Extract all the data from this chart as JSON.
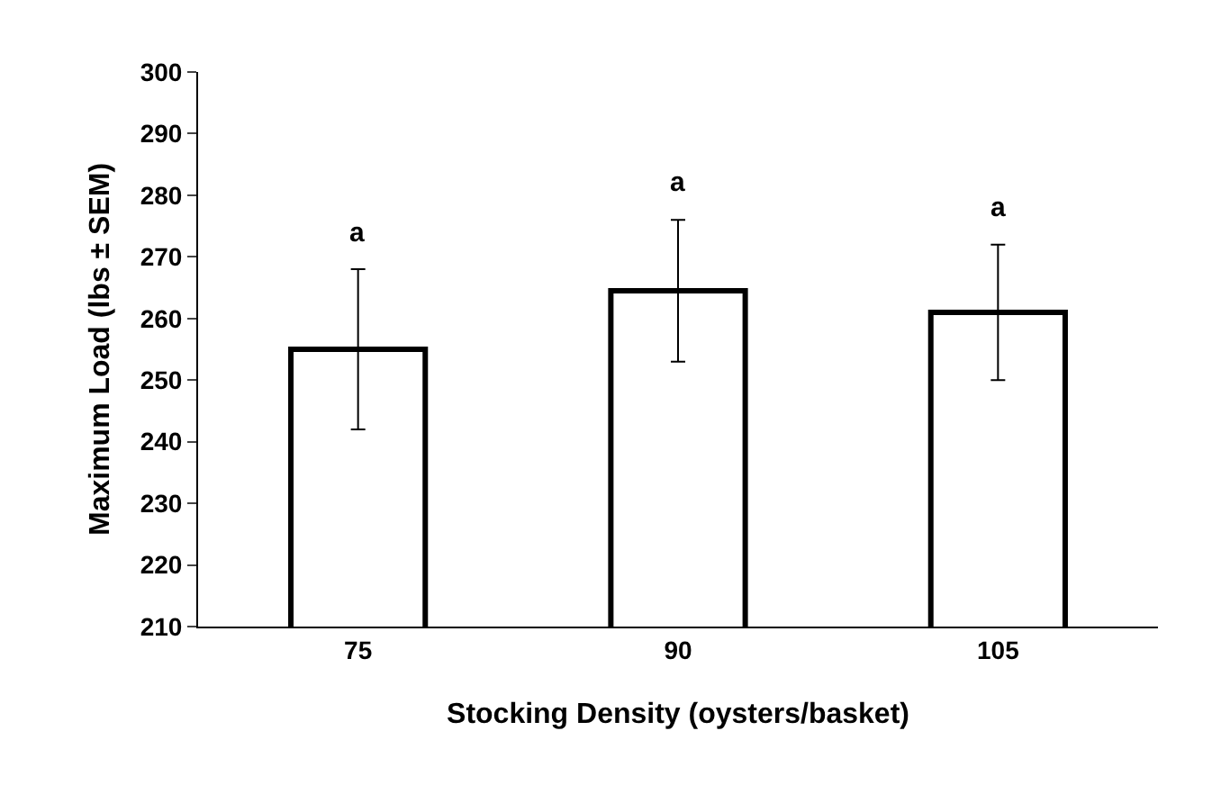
{
  "chart_data": {
    "type": "bar",
    "xlabel": "Stocking Density (oysters/basket)",
    "ylabel": "Maximum Load (lbs ± SEM)",
    "categories": [
      "75",
      "90",
      "105"
    ],
    "values": [
      255,
      264.5,
      261
    ],
    "errors": [
      13,
      11.5,
      11
    ],
    "color": "#ffffff",
    "ylim": [
      210,
      300
    ],
    "yticks": [
      210,
      220,
      230,
      240,
      250,
      260,
      270,
      280,
      290,
      300
    ],
    "grid": false,
    "annotations": [
      {
        "text": "a",
        "x": "75",
        "y": 268
      },
      {
        "text": "a",
        "x": "90",
        "y": 276
      },
      {
        "text": "a",
        "x": "105",
        "y": 272
      }
    ]
  }
}
